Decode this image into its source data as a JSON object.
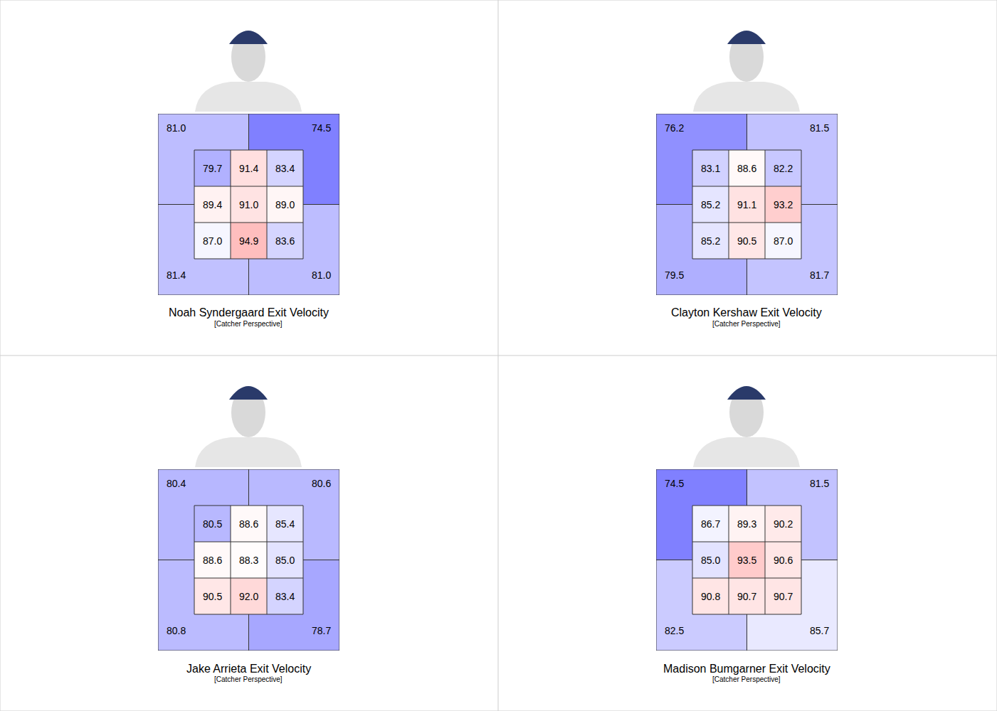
{
  "chart_data": [
    {
      "type": "heatmap",
      "title": "Noah Syndergaard Exit Velocity",
      "subtitle": "[Catcher Perspective]",
      "cells": [
        [
          79.7,
          91.4,
          83.4
        ],
        [
          89.4,
          91.0,
          89.0
        ],
        [
          87.0,
          94.9,
          83.6
        ]
      ],
      "outer": {
        "top_left": 81.0,
        "top_right": 74.5,
        "bottom_left": 81.4,
        "bottom_right": 81.0
      },
      "zlim": [
        61,
        115
      ],
      "data_labels": true,
      "tick_labels": false
    },
    {
      "type": "heatmap",
      "title": "Clayton Kershaw Exit Velocity",
      "subtitle": "[Catcher Perspective]",
      "cells": [
        [
          83.1,
          88.6,
          82.2
        ],
        [
          85.2,
          91.1,
          93.2
        ],
        [
          85.2,
          90.5,
          87.0
        ]
      ],
      "outer": {
        "top_left": 76.2,
        "top_right": 81.5,
        "bottom_left": 79.5,
        "bottom_right": 81.7
      },
      "zlim": [
        61,
        115
      ],
      "data_labels": true,
      "tick_labels": false
    },
    {
      "type": "heatmap",
      "title": "Jake Arrieta Exit Velocity",
      "subtitle": "[Catcher Perspective]",
      "cells": [
        [
          80.5,
          88.6,
          85.4
        ],
        [
          88.6,
          88.3,
          85.0
        ],
        [
          90.5,
          92.0,
          83.4
        ]
      ],
      "outer": {
        "top_left": 80.4,
        "top_right": 80.6,
        "bottom_left": 80.8,
        "bottom_right": 78.7
      },
      "zlim": [
        61,
        115
      ],
      "data_labels": true,
      "tick_labels": false
    },
    {
      "type": "heatmap",
      "title": "Madison Bumgarner Exit Velocity",
      "subtitle": "[Catcher Perspective]",
      "cells": [
        [
          86.7,
          89.3,
          90.2
        ],
        [
          85.0,
          93.5,
          90.6
        ],
        [
          90.8,
          90.7,
          90.7
        ]
      ],
      "outer": {
        "top_left": 74.5,
        "top_right": 81.5,
        "bottom_left": 82.5,
        "bottom_right": 85.7
      },
      "zlim": [
        61,
        115
      ],
      "data_labels": true,
      "tick_labels": false
    }
  ]
}
